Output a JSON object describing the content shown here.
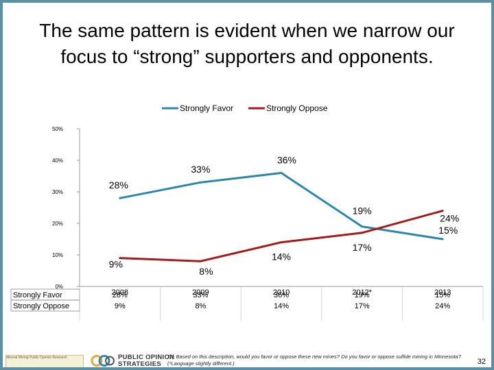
{
  "title_line1": "The same pattern is evident when we narrow our",
  "title_line2": "focus to “strong” supporters and opponents.",
  "colors": {
    "favor": "#2e86ab",
    "oppose": "#a31a1a",
    "frame": "#5b8fa3"
  },
  "chart_data": {
    "type": "line",
    "x": [
      "2008",
      "2009",
      "2010",
      "2012*",
      "2013"
    ],
    "series": [
      {
        "name": "Strongly Favor",
        "values": [
          28,
          33,
          36,
          19,
          15
        ],
        "labels": [
          "28%",
          "33%",
          "36%",
          "19%",
          "15%"
        ]
      },
      {
        "name": "Strongly Oppose",
        "values": [
          9,
          8,
          14,
          17,
          24
        ],
        "labels": [
          "9%",
          "8%",
          "14%",
          "17%",
          "24%"
        ]
      }
    ],
    "ylim": [
      0,
      50
    ],
    "yticks": [
      "0%",
      "10%",
      "20%",
      "30%",
      "40%",
      "50%"
    ],
    "legend": "top-center",
    "table": {
      "rows": [
        {
          "label": "Strongly Favor",
          "cells": [
            "28%",
            "33%",
            "36%",
            "19%",
            "15%"
          ]
        },
        {
          "label": "Strongly Oppose",
          "cells": [
            "9%",
            "8%",
            "14%",
            "17%",
            "24%"
          ]
        }
      ]
    }
  },
  "footnote": "13. Based on this description, would you favor or oppose these new mines? Do you favor or oppose sulfide mining in Minnesota? (*Language slightly different.)",
  "logos": {
    "org_text": "Mineral Mining Public Opinion Research",
    "brand_line1": "PUBLIC OPINION",
    "brand_line2": "STRATEGIES"
  },
  "page_number": "32"
}
